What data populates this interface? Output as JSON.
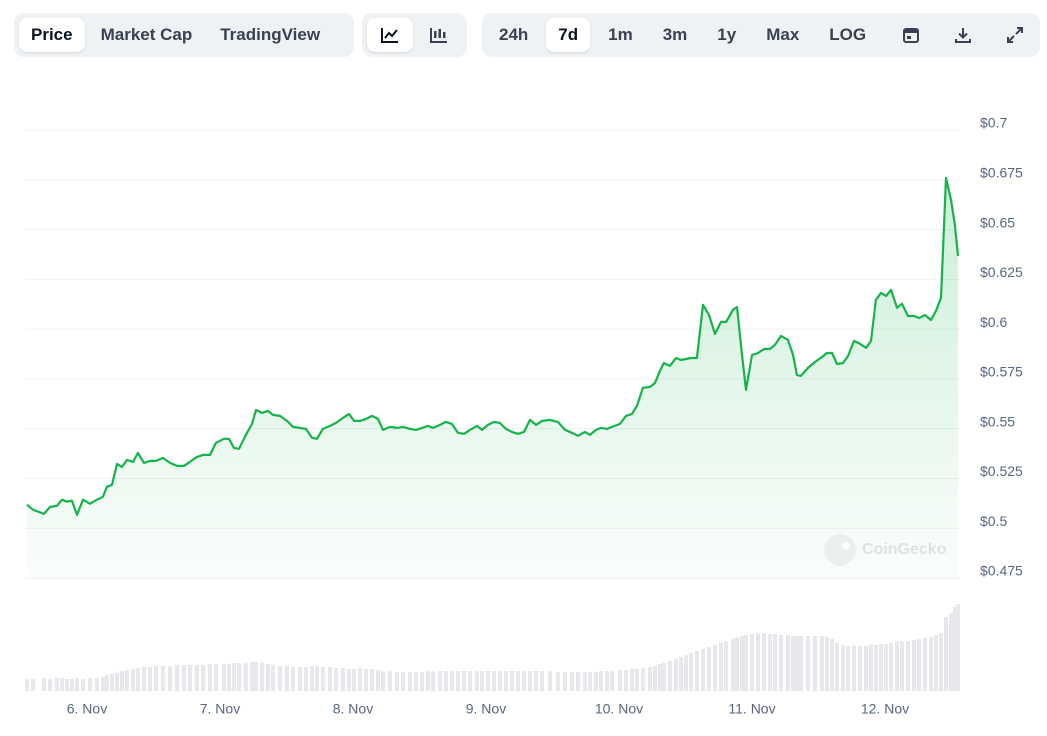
{
  "toolbar": {
    "tabs": [
      "Price",
      "Market Cap",
      "TradingView"
    ],
    "active_tab": 0,
    "ranges": [
      "24h",
      "7d",
      "1m",
      "3m",
      "1y",
      "Max",
      "LOG"
    ],
    "active_range": 1
  },
  "watermark": "CoinGecko",
  "chart_data": {
    "type": "line",
    "color": "#16b34a",
    "volume_color": "#e6e8ec",
    "grid": true,
    "xlim": [
      5.534,
      12.564
    ],
    "ylim": [
      0.475,
      0.7
    ],
    "xticks": [
      {
        "value": 6,
        "label": "6. Nov"
      },
      {
        "value": 7,
        "label": "7. Nov"
      },
      {
        "value": 8,
        "label": "8. Nov"
      },
      {
        "value": 9,
        "label": "9. Nov"
      },
      {
        "value": 10,
        "label": "10. Nov"
      },
      {
        "value": 11,
        "label": "11. Nov"
      },
      {
        "value": 12,
        "label": "12. Nov"
      }
    ],
    "yticks": [
      {
        "value": 0.475,
        "label": "$0.475"
      },
      {
        "value": 0.5,
        "label": "$0.5"
      },
      {
        "value": 0.525,
        "label": "$0.525"
      },
      {
        "value": 0.55,
        "label": "$0.55"
      },
      {
        "value": 0.575,
        "label": "$0.575"
      },
      {
        "value": 0.6,
        "label": "$0.6"
      },
      {
        "value": 0.625,
        "label": "$0.625"
      },
      {
        "value": 0.65,
        "label": "$0.65"
      },
      {
        "value": 0.675,
        "label": "$0.675"
      },
      {
        "value": 0.7,
        "label": "$0.7"
      }
    ],
    "x": [
      5.549,
      5.594,
      5.677,
      5.722,
      5.774,
      5.812,
      5.85,
      5.887,
      5.925,
      5.97,
      6.023,
      6.075,
      6.12,
      6.15,
      6.188,
      6.226,
      6.263,
      6.301,
      6.346,
      6.383,
      6.429,
      6.474,
      6.519,
      6.571,
      6.624,
      6.677,
      6.729,
      6.774,
      6.827,
      6.872,
      6.925,
      6.97,
      7.03,
      7.068,
      7.105,
      7.143,
      7.195,
      7.241,
      7.271,
      7.316,
      7.361,
      7.398,
      7.451,
      7.504,
      7.549,
      7.602,
      7.647,
      7.692,
      7.729,
      7.774,
      7.827,
      7.872,
      7.925,
      7.97,
      8.008,
      8.053,
      8.098,
      8.143,
      8.188,
      8.226,
      8.278,
      8.331,
      8.376,
      8.429,
      8.474,
      8.519,
      8.564,
      8.602,
      8.654,
      8.699,
      8.744,
      8.789,
      8.835,
      8.88,
      8.932,
      8.97,
      9.015,
      9.06,
      9.105,
      9.15,
      9.195,
      9.241,
      9.286,
      9.331,
      9.376,
      9.421,
      9.481,
      9.541,
      9.594,
      9.647,
      9.692,
      9.744,
      9.782,
      9.827,
      9.865,
      9.91,
      9.947,
      10.008,
      10.053,
      10.098,
      10.135,
      10.18,
      10.233,
      10.271,
      10.308,
      10.338,
      10.383,
      10.429,
      10.466,
      10.504,
      10.541,
      10.586,
      10.632,
      10.677,
      10.722,
      10.767,
      10.805,
      10.857,
      10.887,
      10.925,
      10.955,
      11.0,
      11.045,
      11.09,
      11.135,
      11.173,
      11.218,
      11.271,
      11.308,
      11.338,
      11.368,
      11.421,
      11.474,
      11.526,
      11.564,
      11.602,
      11.639,
      11.684,
      11.722,
      11.767,
      11.812,
      11.857,
      11.895,
      11.932,
      11.97,
      12.008,
      12.045,
      12.09,
      12.128,
      12.173,
      12.218,
      12.256,
      12.301,
      12.346,
      12.383,
      12.421,
      12.459,
      12.496,
      12.526,
      12.549
    ],
    "values": [
      0.5118,
      0.5093,
      0.5072,
      0.5107,
      0.5112,
      0.5143,
      0.5133,
      0.5138,
      0.5067,
      0.5143,
      0.5123,
      0.5143,
      0.5158,
      0.5208,
      0.5218,
      0.5323,
      0.5308,
      0.5343,
      0.5333,
      0.5378,
      0.5328,
      0.5338,
      0.5338,
      0.5353,
      0.5328,
      0.5313,
      0.5313,
      0.5333,
      0.5358,
      0.5368,
      0.5368,
      0.5429,
      0.5449,
      0.5449,
      0.5404,
      0.5399,
      0.5469,
      0.5524,
      0.5594,
      0.5579,
      0.5589,
      0.5569,
      0.5564,
      0.5539,
      0.5509,
      0.5504,
      0.5499,
      0.5454,
      0.5449,
      0.5499,
      0.5514,
      0.5529,
      0.5554,
      0.5574,
      0.5539,
      0.5539,
      0.5549,
      0.5564,
      0.5549,
      0.5494,
      0.5509,
      0.5504,
      0.5509,
      0.5499,
      0.5494,
      0.5504,
      0.5514,
      0.5504,
      0.5519,
      0.5534,
      0.5524,
      0.5479,
      0.5474,
      0.5494,
      0.5514,
      0.5494,
      0.5519,
      0.5534,
      0.5529,
      0.5499,
      0.5484,
      0.5474,
      0.5484,
      0.5544,
      0.5519,
      0.5539,
      0.5544,
      0.5534,
      0.5494,
      0.5479,
      0.5464,
      0.5484,
      0.5469,
      0.5494,
      0.5504,
      0.5499,
      0.5509,
      0.5524,
      0.5564,
      0.5574,
      0.5614,
      0.5705,
      0.571,
      0.573,
      0.579,
      0.583,
      0.5815,
      0.5855,
      0.5845,
      0.585,
      0.5855,
      0.5855,
      0.6122,
      0.6071,
      0.5976,
      0.6036,
      0.6036,
      0.6097,
      0.6111,
      0.587,
      0.5695,
      0.587,
      0.588,
      0.59,
      0.59,
      0.5921,
      0.5966,
      0.5946,
      0.587,
      0.577,
      0.5765,
      0.5805,
      0.5835,
      0.586,
      0.588,
      0.588,
      0.5825,
      0.583,
      0.5865,
      0.5941,
      0.5926,
      0.5906,
      0.5941,
      0.6147,
      0.6182,
      0.6167,
      0.6197,
      0.6107,
      0.6127,
      0.6066,
      0.6066,
      0.6056,
      0.6071,
      0.6046,
      0.6091,
      0.6157,
      0.6759,
      0.6649,
      0.6523,
      0.6367
    ],
    "volume": [
      12,
      12,
      13,
      12,
      13,
      13,
      12,
      12,
      13,
      12,
      13,
      13,
      14,
      16,
      17,
      18,
      20,
      21,
      22,
      23,
      24,
      24,
      25,
      25,
      25,
      26,
      26,
      26,
      26,
      26,
      27,
      27,
      27,
      27,
      28,
      28,
      28,
      29,
      29,
      28,
      27,
      26,
      25,
      25,
      24,
      24,
      24,
      25,
      25,
      24,
      24,
      23,
      23,
      22,
      22,
      23,
      22,
      22,
      21,
      20,
      20,
      19,
      19,
      19,
      19,
      19,
      20,
      20,
      20,
      20,
      20,
      20,
      20,
      20,
      20,
      20,
      20,
      20,
      20,
      20,
      20,
      20,
      20,
      20,
      20,
      20,
      20,
      19,
      19,
      19,
      19,
      19,
      19,
      19,
      20,
      20,
      20,
      21,
      21,
      22,
      22,
      23,
      24,
      25,
      27,
      28,
      30,
      32,
      34,
      36,
      38,
      40,
      42,
      44,
      46,
      48,
      50,
      52,
      54,
      55,
      56,
      57,
      58,
      58,
      57,
      57,
      56,
      56,
      55,
      55,
      55,
      55,
      55,
      55,
      54,
      52,
      48,
      46,
      45,
      45,
      45,
      45,
      46,
      46,
      47,
      47,
      48,
      49,
      50,
      50,
      51,
      52,
      53,
      54,
      56,
      58,
      74,
      78,
      84,
      87
    ]
  }
}
